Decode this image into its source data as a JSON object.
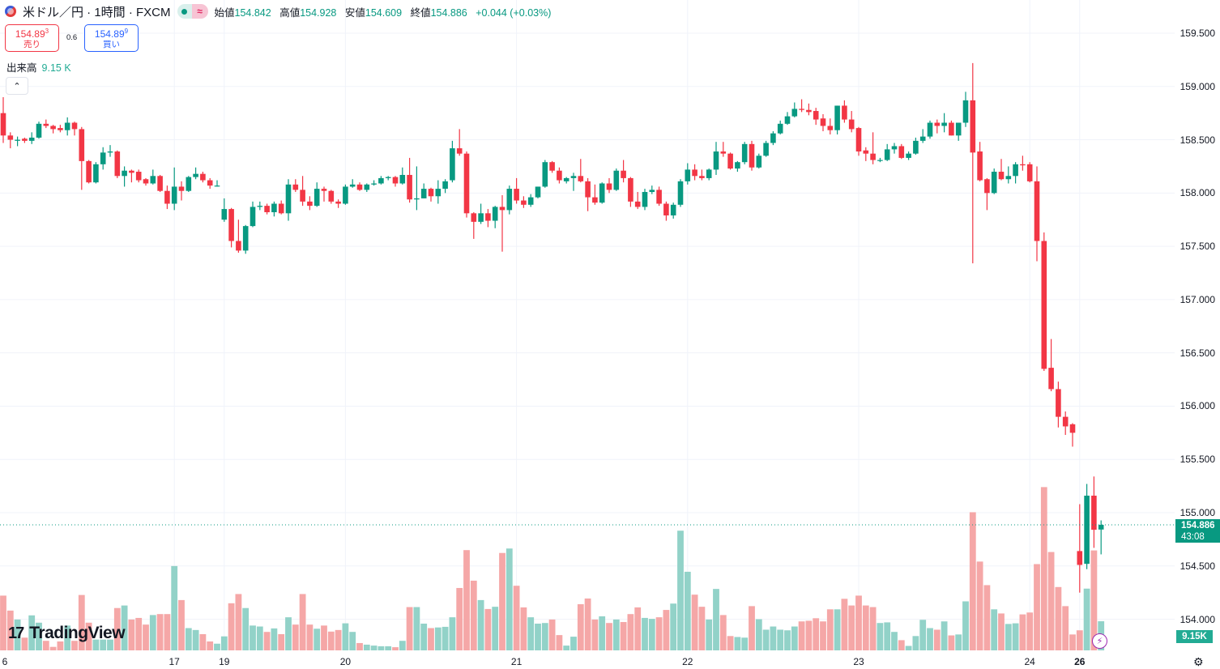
{
  "header": {
    "symbol_title": "米ドル／円 · 1時間 · FXCM",
    "status_badge": "≈",
    "open_label": "始値",
    "open": "154.842",
    "high_label": "高値",
    "high": "154.928",
    "low_label": "安値",
    "low": "154.609",
    "close_label": "終値",
    "close": "154.886",
    "change": "+0.044 (+0.03%)"
  },
  "trade": {
    "sell_price": "154.89",
    "sell_price_small": "3",
    "sell_label": "売り",
    "spread": "0.6",
    "buy_price": "154.89",
    "buy_price_small": "9",
    "buy_label": "買い"
  },
  "volume_indicator": {
    "label": "出来高",
    "value": "9.15 K"
  },
  "collapse_icon": "chevron-up",
  "price_axis": [
    "159.500",
    "159.000",
    "158.500",
    "158.000",
    "157.500",
    "157.000",
    "156.500",
    "156.000",
    "155.500",
    "155.000",
    "154.500",
    "154.000"
  ],
  "current_price": {
    "price": "154.886",
    "countdown": "43:08"
  },
  "volume_label": "9.15K",
  "watermark": "TradingView",
  "colors": {
    "up": "#089981",
    "down": "#f23645",
    "vol_up": "#92d2c8",
    "vol_down": "#f5a7a7"
  },
  "chart_data": {
    "type": "candlestick",
    "interval": "1時間",
    "price_range": [
      154.0,
      159.6
    ],
    "x_ticks": [
      {
        "index": 0,
        "label": "6"
      },
      {
        "index": 24,
        "label": "17"
      },
      {
        "index": 31,
        "label": "19"
      },
      {
        "index": 48,
        "label": "20"
      },
      {
        "index": 72,
        "label": "21"
      },
      {
        "index": 96,
        "label": "22"
      },
      {
        "index": 120,
        "label": "23"
      },
      {
        "index": 144,
        "label": "24"
      },
      {
        "index": 151,
        "label": "26",
        "bold": true
      }
    ],
    "ohlc": [
      [
        158.75,
        158.9,
        158.47,
        158.54
      ],
      [
        158.54,
        158.57,
        158.42,
        158.5
      ],
      [
        158.49,
        158.53,
        158.44,
        158.5
      ],
      [
        158.51,
        158.52,
        158.47,
        158.49
      ],
      [
        158.49,
        158.57,
        158.46,
        158.52
      ],
      [
        158.52,
        158.67,
        158.51,
        158.65
      ],
      [
        158.65,
        158.69,
        158.61,
        158.63
      ],
      [
        158.63,
        158.64,
        158.56,
        158.6
      ],
      [
        158.61,
        158.64,
        158.57,
        158.59
      ],
      [
        158.59,
        158.71,
        158.54,
        158.66
      ],
      [
        158.66,
        158.67,
        158.54,
        158.6
      ],
      [
        158.6,
        158.62,
        158.03,
        158.3
      ],
      [
        158.3,
        158.31,
        158.09,
        158.1
      ],
      [
        158.1,
        158.29,
        158.09,
        158.27
      ],
      [
        158.27,
        158.43,
        158.22,
        158.38
      ],
      [
        158.38,
        158.45,
        158.34,
        158.39
      ],
      [
        158.39,
        158.4,
        158.14,
        158.16
      ],
      [
        158.16,
        158.25,
        158.06,
        158.21
      ],
      [
        158.21,
        158.22,
        158.1,
        158.19
      ],
      [
        158.2,
        158.22,
        158.1,
        158.12
      ],
      [
        158.13,
        158.14,
        158.07,
        158.09
      ],
      [
        158.09,
        158.22,
        158.08,
        158.16
      ],
      [
        158.16,
        158.17,
        158.01,
        158.02
      ],
      [
        158.02,
        158.07,
        157.85,
        157.9
      ],
      [
        157.9,
        158.24,
        157.84,
        158.06
      ],
      [
        158.06,
        158.11,
        157.93,
        158.02
      ],
      [
        158.02,
        158.16,
        158.01,
        158.15
      ],
      [
        158.15,
        158.24,
        158.13,
        158.18
      ],
      [
        158.18,
        158.2,
        158.1,
        158.12
      ],
      [
        158.12,
        158.14,
        158.04,
        158.07
      ],
      [
        158.07,
        158.12,
        158.06,
        158.07
      ],
      [
        157.75,
        157.95,
        157.73,
        157.85
      ],
      [
        157.85,
        157.86,
        157.49,
        157.55
      ],
      [
        157.55,
        157.75,
        157.44,
        157.46
      ],
      [
        157.46,
        157.7,
        157.43,
        157.69
      ],
      [
        157.69,
        157.92,
        157.68,
        157.87
      ],
      [
        157.87,
        157.92,
        157.84,
        157.88
      ],
      [
        157.88,
        157.9,
        157.8,
        157.82
      ],
      [
        157.82,
        157.92,
        157.78,
        157.9
      ],
      [
        157.9,
        157.93,
        157.8,
        157.81
      ],
      [
        157.81,
        158.13,
        157.74,
        158.08
      ],
      [
        158.08,
        158.13,
        158.01,
        158.03
      ],
      [
        158.03,
        158.16,
        157.88,
        157.92
      ],
      [
        157.92,
        157.97,
        157.84,
        157.88
      ],
      [
        157.88,
        158.1,
        157.87,
        158.04
      ],
      [
        158.04,
        158.06,
        157.92,
        158.02
      ],
      [
        158.02,
        158.03,
        157.9,
        157.92
      ],
      [
        157.92,
        157.94,
        157.86,
        157.9
      ],
      [
        157.9,
        158.08,
        157.89,
        158.06
      ],
      [
        158.06,
        158.13,
        158.05,
        158.08
      ],
      [
        158.08,
        158.1,
        158.02,
        158.03
      ],
      [
        158.03,
        158.09,
        158.01,
        158.08
      ],
      [
        158.08,
        158.12,
        158.07,
        158.09
      ],
      [
        158.09,
        158.16,
        158.08,
        158.14
      ],
      [
        158.14,
        158.16,
        158.12,
        158.15
      ],
      [
        158.15,
        158.16,
        158.06,
        158.09
      ],
      [
        158.09,
        158.24,
        158.08,
        158.17
      ],
      [
        158.17,
        158.33,
        157.91,
        157.94
      ],
      [
        157.94,
        158.25,
        157.84,
        157.95
      ],
      [
        157.95,
        158.09,
        157.95,
        158.04
      ],
      [
        158.04,
        158.05,
        157.92,
        157.97
      ],
      [
        157.97,
        158.12,
        157.9,
        158.04
      ],
      [
        158.04,
        158.13,
        158.0,
        158.11
      ],
      [
        158.12,
        158.49,
        158.1,
        158.42
      ],
      [
        158.42,
        158.6,
        158.35,
        158.37
      ],
      [
        158.37,
        158.39,
        157.77,
        157.81
      ],
      [
        157.81,
        157.82,
        157.57,
        157.73
      ],
      [
        157.73,
        157.9,
        157.71,
        157.81
      ],
      [
        157.81,
        157.85,
        157.68,
        157.74
      ],
      [
        157.74,
        157.88,
        157.67,
        157.87
      ],
      [
        157.87,
        157.98,
        157.45,
        157.84
      ],
      [
        157.84,
        158.07,
        157.8,
        158.04
      ],
      [
        158.04,
        158.14,
        157.9,
        157.93
      ],
      [
        157.93,
        157.97,
        157.86,
        157.89
      ],
      [
        157.89,
        157.99,
        157.87,
        157.96
      ],
      [
        157.96,
        158.06,
        157.95,
        158.06
      ],
      [
        158.06,
        158.31,
        158.05,
        158.29
      ],
      [
        158.29,
        158.3,
        158.19,
        158.21
      ],
      [
        158.21,
        158.24,
        158.09,
        158.12
      ],
      [
        158.11,
        158.15,
        158.09,
        158.14
      ],
      [
        158.14,
        158.19,
        158.02,
        158.16
      ],
      [
        158.16,
        158.32,
        158.1,
        158.11
      ],
      [
        158.11,
        158.14,
        157.83,
        157.96
      ],
      [
        157.96,
        158.08,
        157.89,
        157.91
      ],
      [
        157.91,
        158.1,
        157.9,
        158.09
      ],
      [
        158.09,
        158.14,
        158.0,
        158.03
      ],
      [
        158.03,
        158.23,
        158.02,
        158.21
      ],
      [
        158.21,
        158.31,
        158.1,
        158.14
      ],
      [
        158.14,
        158.15,
        157.87,
        157.92
      ],
      [
        157.92,
        158.01,
        157.85,
        157.87
      ],
      [
        157.87,
        158.04,
        157.84,
        158.01
      ],
      [
        158.01,
        158.07,
        157.99,
        158.03
      ],
      [
        158.03,
        158.06,
        157.88,
        157.9
      ],
      [
        157.9,
        157.92,
        157.74,
        157.79
      ],
      [
        157.79,
        157.91,
        157.76,
        157.89
      ],
      [
        157.89,
        158.13,
        157.87,
        158.11
      ],
      [
        158.11,
        158.28,
        158.08,
        158.22
      ],
      [
        158.22,
        158.27,
        158.12,
        158.16
      ],
      [
        158.16,
        158.22,
        158.12,
        158.14
      ],
      [
        158.14,
        158.23,
        158.12,
        158.22
      ],
      [
        158.22,
        158.48,
        158.17,
        158.39
      ],
      [
        158.39,
        158.48,
        158.34,
        158.37
      ],
      [
        158.37,
        158.38,
        158.22,
        158.23
      ],
      [
        158.23,
        158.3,
        158.2,
        158.29
      ],
      [
        158.29,
        158.48,
        158.27,
        158.46
      ],
      [
        158.46,
        158.49,
        158.21,
        158.24
      ],
      [
        158.24,
        158.37,
        158.23,
        158.35
      ],
      [
        158.35,
        158.49,
        158.34,
        158.47
      ],
      [
        158.47,
        158.58,
        158.45,
        158.56
      ],
      [
        158.56,
        158.68,
        158.55,
        158.65
      ],
      [
        158.65,
        158.76,
        158.64,
        158.72
      ],
      [
        158.72,
        158.85,
        158.71,
        158.79
      ],
      [
        158.79,
        158.88,
        158.76,
        158.78
      ],
      [
        158.78,
        158.84,
        158.73,
        158.76
      ],
      [
        158.77,
        158.8,
        158.64,
        158.69
      ],
      [
        158.7,
        158.74,
        158.58,
        158.63
      ],
      [
        158.63,
        158.7,
        158.55,
        158.59
      ],
      [
        158.59,
        158.82,
        158.55,
        158.82
      ],
      [
        158.82,
        158.87,
        158.66,
        158.69
      ],
      [
        158.69,
        158.77,
        158.57,
        158.6
      ],
      [
        158.61,
        158.62,
        158.35,
        158.39
      ],
      [
        158.4,
        158.43,
        158.3,
        158.37
      ],
      [
        158.37,
        158.57,
        158.27,
        158.31
      ],
      [
        158.31,
        158.33,
        158.29,
        158.31
      ],
      [
        158.31,
        158.46,
        158.3,
        158.41
      ],
      [
        158.41,
        158.47,
        158.37,
        158.44
      ],
      [
        158.44,
        158.46,
        158.32,
        158.33
      ],
      [
        158.33,
        158.39,
        158.31,
        158.37
      ],
      [
        158.37,
        158.52,
        158.36,
        158.49
      ],
      [
        158.49,
        158.6,
        158.47,
        158.53
      ],
      [
        158.53,
        158.68,
        158.51,
        158.66
      ],
      [
        158.66,
        158.69,
        158.56,
        158.63
      ],
      [
        158.63,
        158.75,
        158.57,
        158.66
      ],
      [
        158.66,
        158.68,
        158.54,
        158.54
      ],
      [
        158.54,
        158.66,
        158.49,
        158.66
      ],
      [
        158.66,
        158.95,
        158.62,
        158.87
      ],
      [
        158.87,
        159.22,
        157.34,
        158.38
      ],
      [
        158.39,
        158.48,
        158.11,
        158.12
      ],
      [
        158.13,
        158.14,
        157.84,
        158.0
      ],
      [
        158.0,
        158.23,
        157.99,
        158.2
      ],
      [
        158.2,
        158.32,
        158.12,
        158.13
      ],
      [
        158.13,
        158.25,
        158.09,
        158.16
      ],
      [
        158.16,
        158.29,
        158.09,
        158.27
      ],
      [
        158.27,
        158.35,
        158.21,
        158.26
      ],
      [
        158.27,
        158.29,
        158.1,
        158.11
      ],
      [
        158.11,
        158.25,
        157.36,
        157.55
      ],
      [
        157.55,
        157.63,
        156.33,
        156.35
      ],
      [
        156.36,
        156.63,
        156.14,
        156.16
      ],
      [
        156.16,
        156.23,
        155.8,
        155.9
      ],
      [
        155.9,
        155.95,
        155.73,
        155.81
      ],
      [
        155.83,
        155.84,
        155.62,
        155.75
      ],
      [
        154.64,
        155.08,
        154.25,
        154.51
      ],
      [
        154.52,
        155.27,
        154.47,
        155.16
      ],
      [
        155.16,
        155.34,
        154.67,
        154.84
      ],
      [
        154.842,
        154.928,
        154.609,
        154.886
      ]
    ],
    "volume_k": [
      17.2,
      12.5,
      9.7,
      4.0,
      11.0,
      8.7,
      3.0,
      1.1,
      2.8,
      7.8,
      3.0,
      17.4,
      8.7,
      3.4,
      3.4,
      3.4,
      13.3,
      14.1,
      9.7,
      10.2,
      8.1,
      11.1,
      11.4,
      11.4,
      26.5,
      15.8,
      7.0,
      6.4,
      5.1,
      2.8,
      2.1,
      4.4,
      14.8,
      17.7,
      13.3,
      7.8,
      7.5,
      5.8,
      6.9,
      5.1,
      10.4,
      8.1,
      17.7,
      8.1,
      6.8,
      7.8,
      5.9,
      6.4,
      8.5,
      5.8,
      2.3,
      1.8,
      1.5,
      1.3,
      1.3,
      1.0,
      3.0,
      13.6,
      13.6,
      8.4,
      7.0,
      7.2,
      7.4,
      10.4,
      19.6,
      31.5,
      21.9,
      15.8,
      13.0,
      13.7,
      30.6,
      32.0,
      20.3,
      13.5,
      10.4,
      8.4,
      8.6,
      9.7,
      4.8,
      1.5,
      4.3,
      14.5,
      16.3,
      9.7,
      10.7,
      8.6,
      9.7,
      8.9,
      11.4,
      13.5,
      10.2,
      9.9,
      10.4,
      12.7,
      14.7,
      37.6,
      24.7,
      17.5,
      13.7,
      9.7,
      19.3,
      11.1,
      4.5,
      4.2,
      4.0,
      13.9,
      9.8,
      6.5,
      7.5,
      6.5,
      6.3,
      7.5,
      9.1,
      9.3,
      10.1,
      9.1,
      12.9,
      12.9,
      16.2,
      14.1,
      17.2,
      14.1,
      13.6,
      8.6,
      8.8,
      5.8,
      3.2,
      1.4,
      4.5,
      9.6,
      7.0,
      6.5,
      9.1,
      4.7,
      5.0,
      15.4,
      43.4,
      27.9,
      20.5,
      12.9,
      11.6,
      8.3,
      8.5,
      11.3,
      11.9,
      27.1,
      51.3,
      30.9,
      19.9,
      13.9,
      5.0,
      6.3,
      19.4,
      31.4,
      9.15
    ]
  }
}
